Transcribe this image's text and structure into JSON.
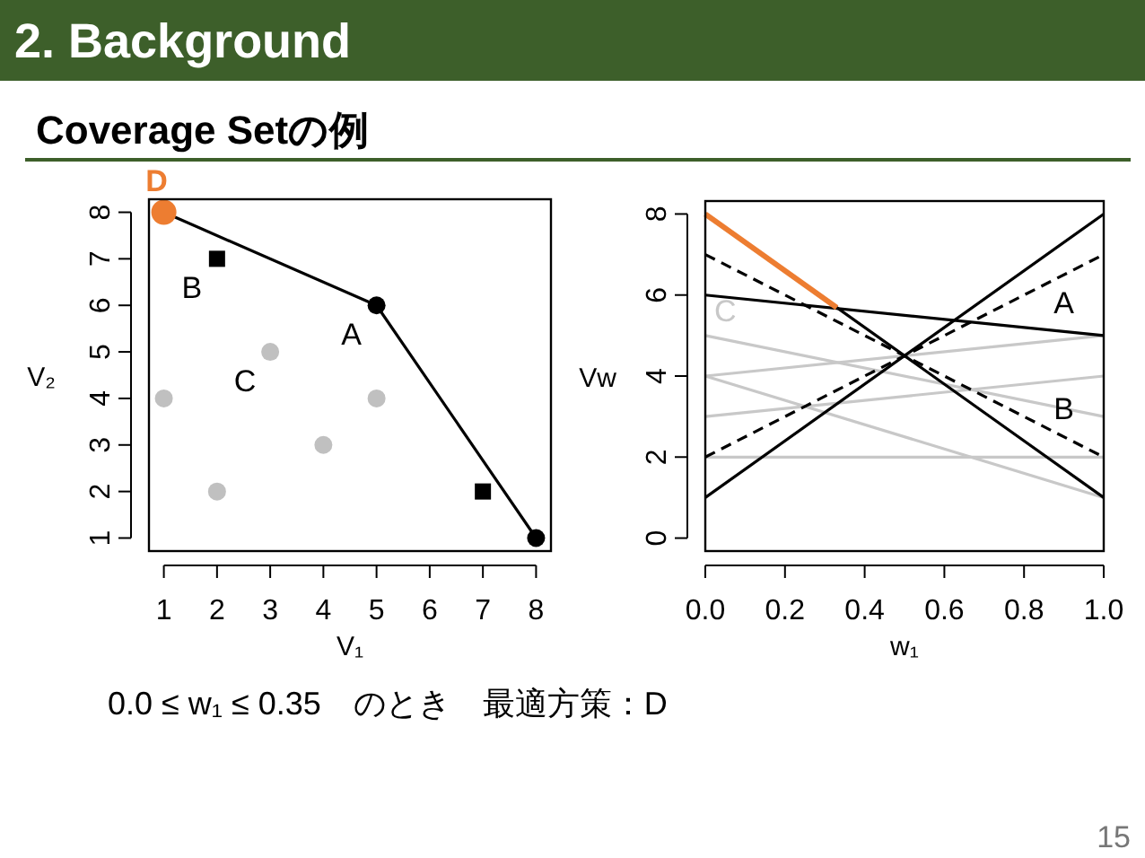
{
  "chart_data": [
    {
      "type": "scatter",
      "title": "2. Background",
      "subtitle": "Coverage Setの例",
      "xlabel": "V₁",
      "ylabel": "V₂",
      "xlim": [
        0.72,
        8.28
      ],
      "ylim": [
        0.72,
        8.28
      ],
      "xticks": [
        1,
        2,
        3,
        4,
        5,
        6,
        7,
        8
      ],
      "yticks": [
        1,
        2,
        3,
        4,
        5,
        6,
        7,
        8
      ],
      "series": [
        {
          "type": "line",
          "color": "#000000",
          "x": [
            1,
            5,
            8
          ],
          "values": [
            8,
            6,
            1
          ]
        },
        {
          "color": "#c0c0c0",
          "x": [
            1,
            2,
            3,
            4,
            5
          ],
          "values": [
            4,
            2,
            5,
            3,
            4
          ],
          "marker": "circle"
        },
        {
          "color": "#000000",
          "x": [
            2,
            7
          ],
          "values": [
            7,
            2
          ],
          "marker": "square"
        },
        {
          "color": "#000000",
          "x": [
            5,
            8
          ],
          "values": [
            6,
            1
          ],
          "marker": "circle"
        },
        {
          "color": "#ed7d31",
          "x": [
            1
          ],
          "values": [
            8
          ],
          "marker": "circle"
        }
      ],
      "annotations": [
        {
          "text": "D",
          "x": 1,
          "y": 8
        },
        {
          "text": "B",
          "x": 2,
          "y": 7
        },
        {
          "text": "A",
          "x": 5,
          "y": 6
        },
        {
          "text": "C",
          "x": 3,
          "y": 5
        }
      ]
    },
    {
      "type": "line",
      "xlabel": "w₁",
      "ylabel": "Vw",
      "xlim": [
        0,
        1
      ],
      "ylim": [
        -0.32,
        8.32
      ],
      "xticks": [
        {
          "value": 0,
          "label": "0.0"
        },
        0.2,
        0.4,
        0.6,
        0.8,
        {
          "value": 1,
          "label": "1.0"
        }
      ],
      "yticks": [
        0,
        2,
        4,
        6,
        8
      ],
      "series": [
        {
          "color": "#c8c8c8",
          "x": [
            0,
            1
          ],
          "values": [
            4,
            1
          ]
        },
        {
          "color": "#c8c8c8",
          "x": [
            0,
            1
          ],
          "values": [
            2,
            2
          ]
        },
        {
          "color": "#c8c8c8",
          "x": [
            0,
            1
          ],
          "values": [
            5,
            3
          ]
        },
        {
          "color": "#c8c8c8",
          "x": [
            0,
            1
          ],
          "values": [
            3,
            4
          ]
        },
        {
          "color": "#c8c8c8",
          "x": [
            0,
            1
          ],
          "values": [
            4,
            5
          ]
        },
        {
          "color": "#000000",
          "x": [
            0,
            1
          ],
          "values": [
            7,
            2
          ],
          "line_style": "dashed"
        },
        {
          "color": "#000000",
          "x": [
            0,
            1
          ],
          "values": [
            2,
            7
          ],
          "line_style": "dashed"
        },
        {
          "color": "#000000",
          "x": [
            0,
            1
          ],
          "values": [
            6,
            5
          ]
        },
        {
          "color": "#000000",
          "x": [
            0,
            1
          ],
          "values": [
            1,
            8
          ]
        },
        {
          "color": "#000000",
          "x": [
            0,
            1
          ],
          "values": [
            8,
            1
          ]
        },
        {
          "color": "#ed7d31",
          "x": [
            0,
            0.33
          ],
          "values": [
            8,
            5.69
          ]
        }
      ],
      "annotations": [
        {
          "text": "A",
          "x": 0.9,
          "y": 5.1
        },
        {
          "text": "B",
          "x": 0.9,
          "y": 2.5
        },
        {
          "text": "C",
          "x": 0.05,
          "y": 4.9
        },
        "0.0 ≤ w₁ ≤ 0.35　のとき　最適方策：D",
        "15"
      ]
    }
  ]
}
